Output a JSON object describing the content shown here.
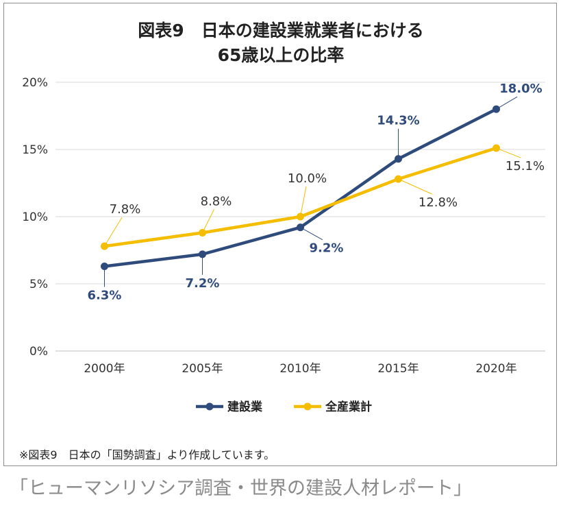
{
  "chart_data": {
    "type": "line",
    "title": [
      "図表9　日本の建設業就業者における",
      "65歳以上の比率"
    ],
    "categories": [
      "2000年",
      "2005年",
      "2010年",
      "2015年",
      "2020年"
    ],
    "ylim": [
      0,
      20
    ],
    "yticks": [
      "0%",
      "5%",
      "10%",
      "15%",
      "20%"
    ],
    "grid": true,
    "legend_position": "bottom",
    "series": [
      {
        "name": "建設業",
        "color": "#2f4b7c",
        "values": [
          6.3,
          7.2,
          9.2,
          14.3,
          18.0
        ],
        "labels": [
          "6.3%",
          "7.2%",
          "9.2%",
          "14.3%",
          "18.0%"
        ]
      },
      {
        "name": "全産業計",
        "color": "#f5bd00",
        "values": [
          7.8,
          8.8,
          10.0,
          12.8,
          15.1
        ],
        "labels": [
          "7.8%",
          "8.8%",
          "10.0%",
          "12.8%",
          "15.1%"
        ]
      }
    ]
  },
  "note": "※図表9　日本の「国勢調査」より作成しています。",
  "footer": "「ヒューマンリソシア調査・世界の建設人材レポート」"
}
